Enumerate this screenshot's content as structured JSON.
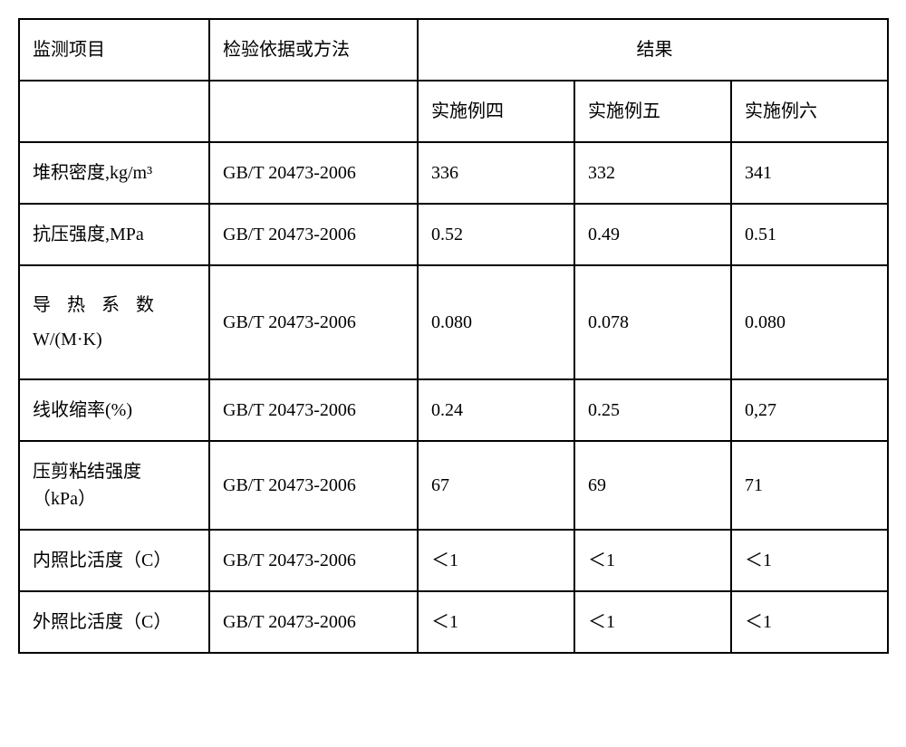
{
  "header": {
    "param": "监测项目",
    "method": "检验依据或方法",
    "result": "结果"
  },
  "subheader": {
    "r1": "实施例四",
    "r2": "实施例五",
    "r3": "实施例六"
  },
  "rows": [
    {
      "param": "堆积密度,kg/m³",
      "method": "GB/T 20473-2006",
      "r1": "336",
      "r2": "332",
      "r3": "341"
    },
    {
      "param": "抗压强度,MPa",
      "method": "GB/T 20473-2006",
      "r1": "0.52",
      "r2": "0.49",
      "r3": "0.51"
    },
    {
      "param_line1": "导热系数",
      "param_line2": "W/(M·K)",
      "method": "GB/T 20473-2006",
      "r1": "0.080",
      "r2": "0.078",
      "r3": "0.080"
    },
    {
      "param": "线收缩率(%)",
      "method": "GB/T 20473-2006",
      "r1": "0.24",
      "r2": "0.25",
      "r3": "0,27"
    },
    {
      "param_line1": "压剪粘结强度",
      "param_line2": "（kPa）",
      "method": "GB/T 20473-2006",
      "r1": "67",
      "r2": "69",
      "r3": "71"
    },
    {
      "param": "内照比活度（C）",
      "method": "GB/T 20473-2006",
      "r1": "＜1",
      "r2": "＜1",
      "r3": "＜1"
    },
    {
      "param": "外照比活度（C）",
      "method": "GB/T 20473-2006",
      "r1": "＜1",
      "r2": "＜1",
      "r3": "＜1"
    }
  ]
}
